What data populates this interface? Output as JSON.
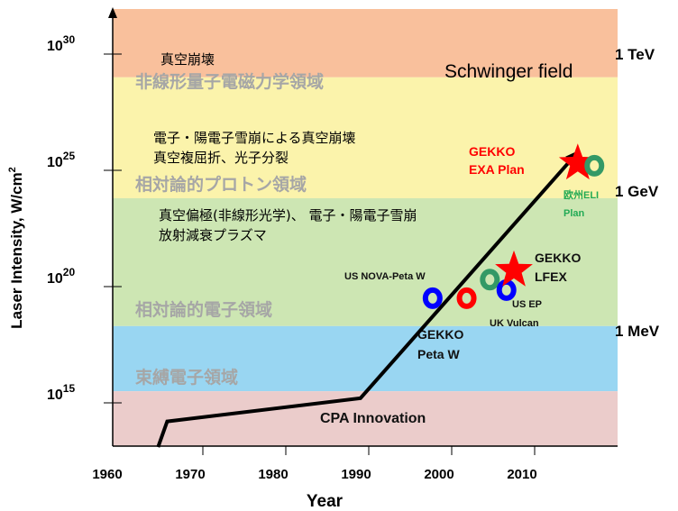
{
  "chart_data": {
    "type": "line",
    "xlabel": "Year",
    "ylabel": "Laser Intensity, W/cm2",
    "ylabel_parts": {
      "main": "Laser Intensity, W/cm",
      "sup": "2"
    },
    "x_ticks": [
      1960,
      1970,
      1980,
      1990,
      2000,
      2010
    ],
    "xlim": [
      1960,
      2020
    ],
    "y_scale": "log",
    "ylim_exponent": [
      13,
      32
    ],
    "y_ticks": [
      {
        "base": "10",
        "exp": "15",
        "value": 15
      },
      {
        "base": "10",
        "exp": "20",
        "value": 20
      },
      {
        "base": "10",
        "exp": "25",
        "value": 25
      },
      {
        "base": "10",
        "exp": "30",
        "value": 30
      }
    ],
    "bands": [
      {
        "from": 29.0,
        "to": 32.0,
        "color": "#f9c09c",
        "label": "非線形量子電磁力学領域"
      },
      {
        "from": 23.8,
        "to": 29.0,
        "color": "#fbf3ab",
        "label": "相対論的プロトン領域"
      },
      {
        "from": 18.3,
        "to": 23.8,
        "color": "#cde6b3",
        "label": "相対論的電子領域"
      },
      {
        "from": 15.5,
        "to": 18.3,
        "color": "#99d6f2",
        "label": "束縛電子領域"
      },
      {
        "from": 13.0,
        "to": 15.5,
        "color": "#ebcccb",
        "label": ""
      }
    ],
    "energy_labels": [
      {
        "text": "1 TeV",
        "value": 30
      },
      {
        "text": "1 GeV",
        "value": 24.1
      },
      {
        "text": "1 MeV",
        "value": 18.1
      }
    ],
    "series": [
      {
        "points": [
          [
            1964.6,
            13.1
          ],
          [
            1965.7,
            14.2
          ],
          [
            1989.0,
            15.2
          ],
          [
            2015.0,
            25.7
          ]
        ],
        "color": "#000000"
      }
    ],
    "markers": [
      {
        "x": 1997.7,
        "y": 19.5,
        "shape": "ring",
        "color": "#0000ff"
      },
      {
        "x": 2001.8,
        "y": 19.5,
        "shape": "ring",
        "color": "#ff0000"
      },
      {
        "x": 2004.6,
        "y": 20.3,
        "shape": "ring",
        "color": "#339966"
      },
      {
        "x": 2006.6,
        "y": 19.85,
        "shape": "ring",
        "color": "#0000ff"
      },
      {
        "x": 2007.5,
        "y": 20.7,
        "shape": "star",
        "color": "#ff0000"
      },
      {
        "x": 2015.2,
        "y": 25.3,
        "shape": "star",
        "color": "#ff0000"
      },
      {
        "x": 2017.2,
        "y": 25.2,
        "shape": "ring",
        "color": "#339966"
      }
    ],
    "annotations": {
      "schwinger": "Schwinger field",
      "vacuum_breakdown": "真空崩壊",
      "pair_line1": "電子・陽電子雪崩による真空崩壊",
      "pair_line2": "真空複屈折、光子分裂",
      "pol_line1": "真空偏極(非線形光学)、 電子・陽電子雪崩",
      "pol_line2": "放射減衰プラズマ",
      "exa_line1": "GEKKO",
      "exa_line2": "EXA Plan",
      "eli_line1": "欧州ELI",
      "eli_line2": "Plan",
      "lfex_line1": "GEKKO",
      "lfex_line2": "LFEX",
      "nova": "US NOVA-Peta W",
      "usep": "US EP",
      "vulcan": "UK Vulcan",
      "petaw_line1": "GEKKO",
      "petaw_line2": "Peta W",
      "cpa": "CPA Innovation"
    }
  }
}
